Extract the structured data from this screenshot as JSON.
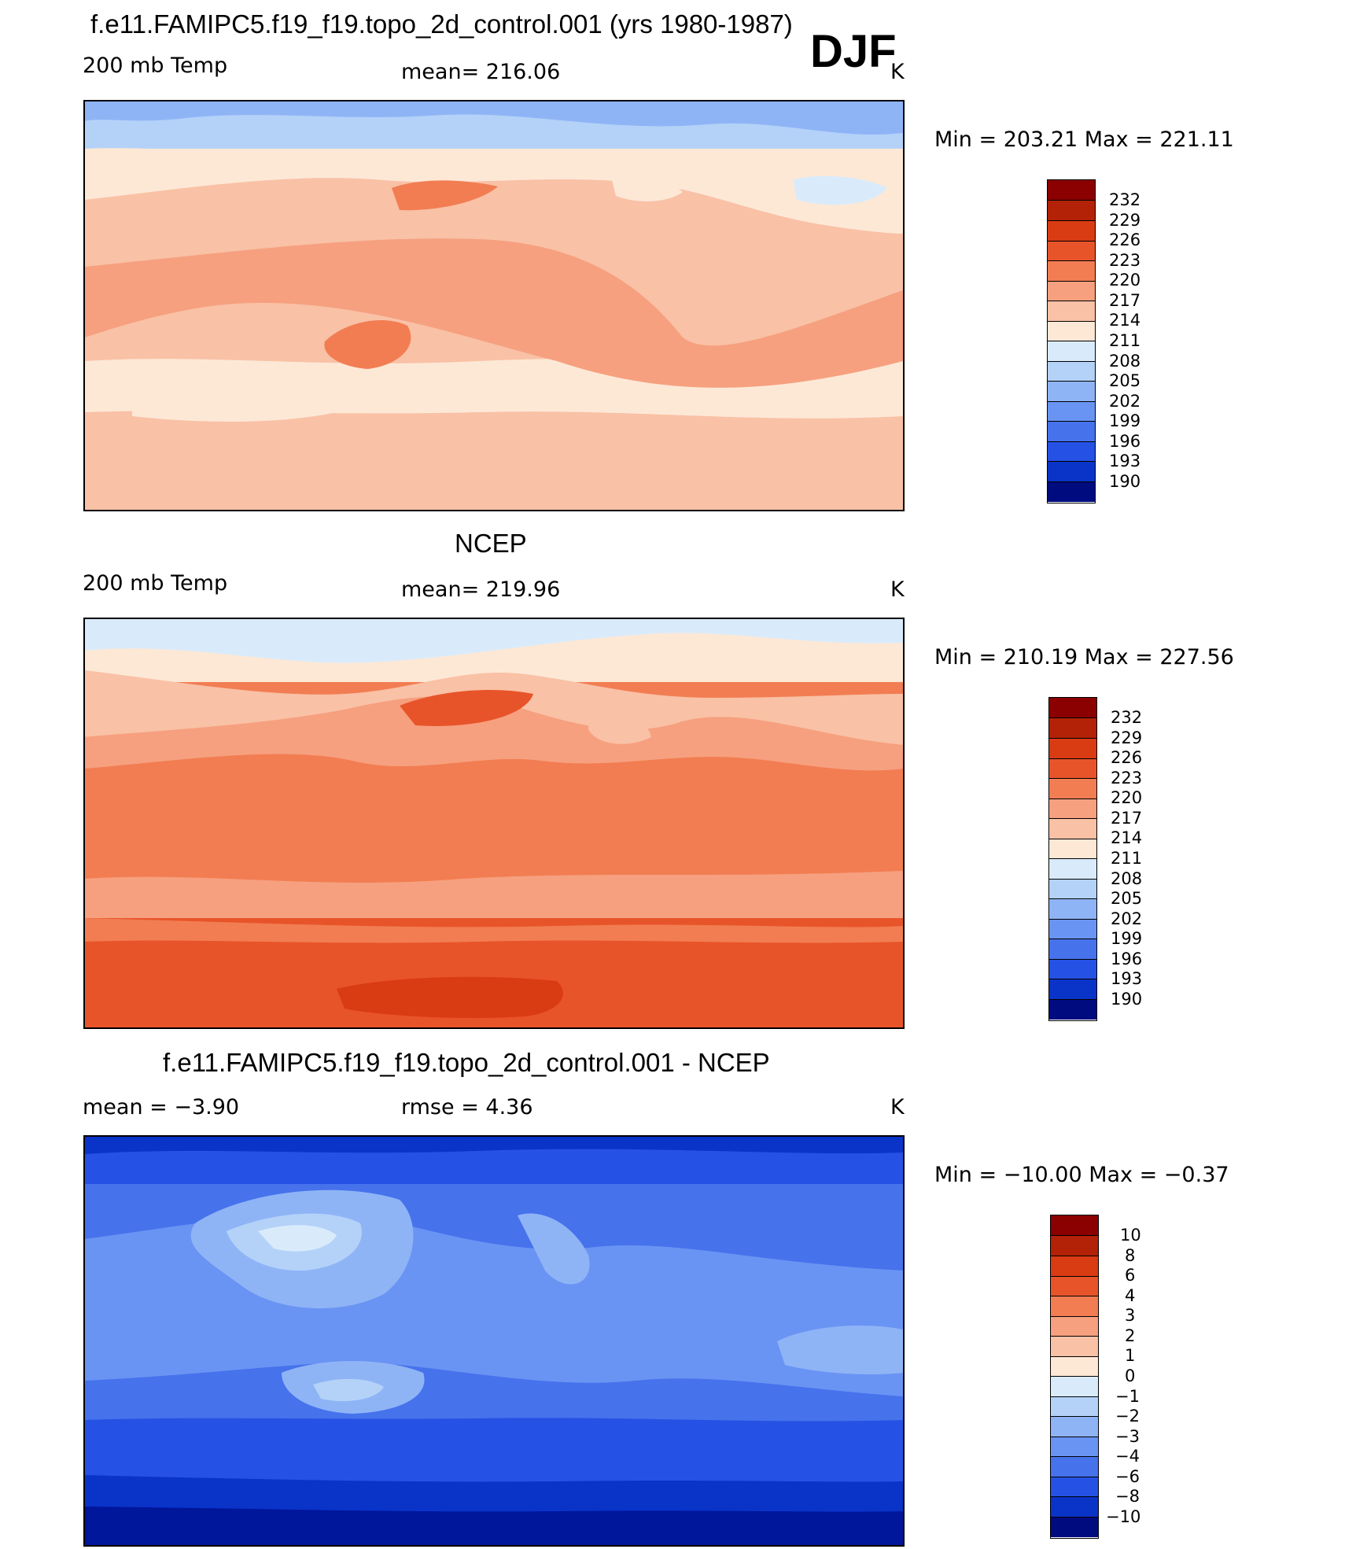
{
  "season": "DJF",
  "colors": {
    "warm": [
      "#fde8d6",
      "#f9c1a6",
      "#f6a07f",
      "#f27d52",
      "#e8542a",
      "#d93b13",
      "#b32206",
      "#8b0000"
    ],
    "cool": [
      "#d9ebfb",
      "#b4d2f8",
      "#8fb4f6",
      "#6a94f3",
      "#4672ec",
      "#2552e4",
      "#0a33c8",
      "#00169b",
      "#000b80"
    ],
    "coast": "#000000"
  },
  "panels": [
    {
      "title": "f.e11.FAMIPC5.f19_f19.topo_2d_control.001 (yrs 1980-1987)",
      "left_label": "200 mb Temp",
      "center_label": "mean=  216.06",
      "units": "K",
      "minmax": "Min  =  203.21  Max  =  221.11",
      "field_range": [
        203.21,
        221.11
      ],
      "colorbar_labels": [
        "232",
        "229",
        "226",
        "223",
        "220",
        "217",
        "214",
        "211",
        "208",
        "205",
        "202",
        "199",
        "196",
        "193",
        "190"
      ]
    },
    {
      "title": "NCEP",
      "left_label": "200 mb Temp",
      "center_label": "mean=  219.96",
      "units": "K",
      "minmax": "Min  =  210.19  Max  =  227.56",
      "field_range": [
        210.19,
        227.56
      ],
      "colorbar_labels": [
        "232",
        "229",
        "226",
        "223",
        "220",
        "217",
        "214",
        "211",
        "208",
        "205",
        "202",
        "199",
        "196",
        "193",
        "190"
      ]
    },
    {
      "title": "f.e11.FAMIPC5.f19_f19.topo_2d_control.001 - NCEP",
      "left_label": "mean  =    −3.90",
      "center_label": "rmse  =     4.36",
      "units": "K",
      "minmax": "Min  =  −10.00  Max  =    −0.37",
      "field_range": [
        -10.0,
        -0.37
      ],
      "colorbar_labels": [
        "10",
        "8",
        "6",
        "4",
        "3",
        "2",
        "1",
        "0",
        "−1",
        "−2",
        "−3",
        "−4",
        "−6",
        "−8",
        "−10"
      ]
    }
  ]
}
